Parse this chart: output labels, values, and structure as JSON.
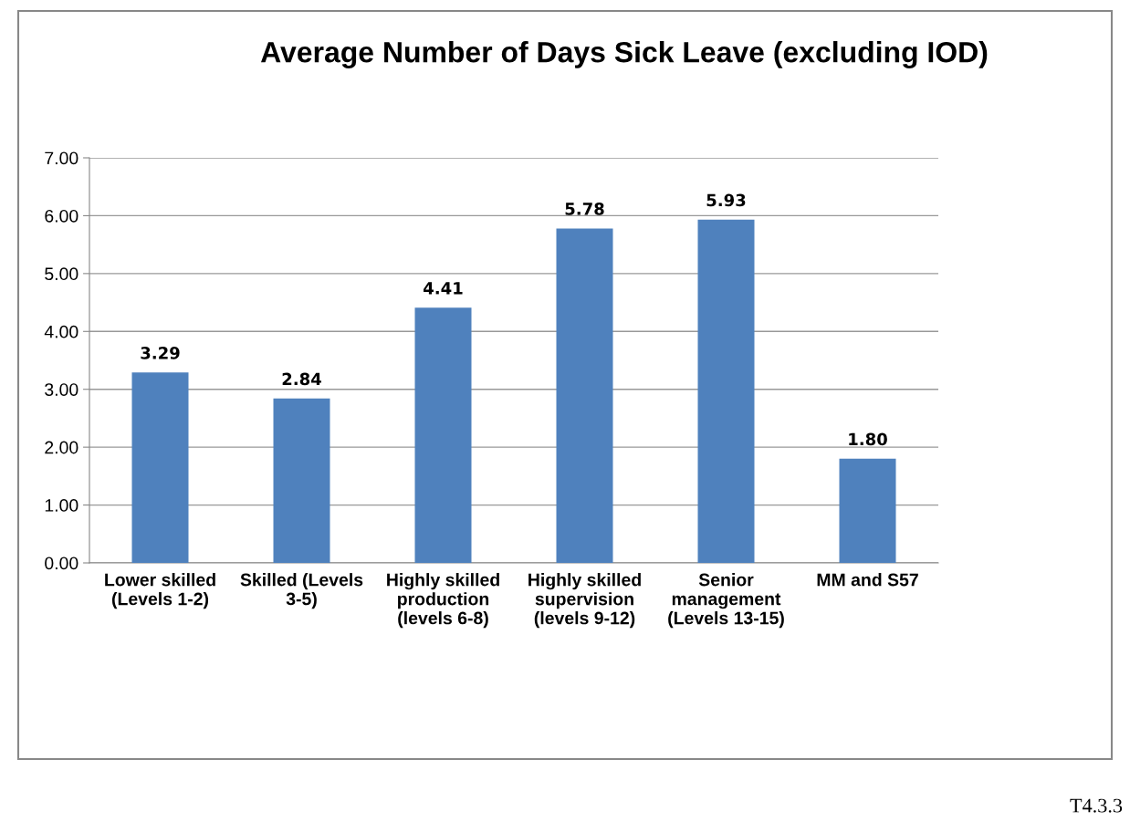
{
  "chart_data": {
    "type": "bar",
    "title": "Average Number of Days Sick Leave (excluding IOD)",
    "categories": [
      "Lower skilled\n(Levels 1-2)",
      "Skilled (Levels\n3-5)",
      "Highly skilled\nproduction\n(levels 6-8)",
      "Highly skilled\nsupervision\n(levels 9-12)",
      "Senior\nmanagement\n(Levels 13-15)",
      "MM and S57"
    ],
    "values": [
      3.29,
      2.84,
      4.41,
      5.78,
      5.93,
      1.8
    ],
    "color": "#4f81bd",
    "ylim": [
      0,
      7
    ],
    "yticks": [
      {
        "value": 0,
        "label": "0.00"
      },
      {
        "value": 1,
        "label": "1.00"
      },
      {
        "value": 2,
        "label": "2.00"
      },
      {
        "value": 3,
        "label": "3.00"
      },
      {
        "value": 4,
        "label": "4.00"
      },
      {
        "value": 5,
        "label": "5.00"
      },
      {
        "value": 6,
        "label": "6.00"
      },
      {
        "value": 7,
        "label": "7.00"
      }
    ],
    "value_labels": [
      "3.29",
      "2.84",
      "4.41",
      "5.78",
      "5.93",
      "1.80"
    ],
    "grid": "y",
    "legend": false,
    "annotations": [
      "T4.3.3"
    ]
  }
}
